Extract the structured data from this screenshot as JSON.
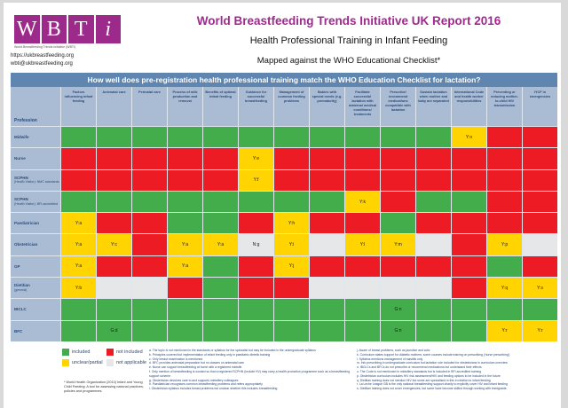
{
  "header": {
    "logo_letters": [
      "W",
      "B",
      "T",
      "i"
    ],
    "logo_tagline": "World Breastfeeding Trends Initiative (WBTi)",
    "website": "https://ukbreastfeeding.org",
    "email": "wbti@ukbreastfeeding.org",
    "title": "World Breastfeeding Trends Initiative UK Report 2016",
    "subtitle": "Health Professional Training in Infant Feeding",
    "subsubtitle": "Mapped against the WHO Educational Checklist*"
  },
  "banner": "How well does pre-registration health professional training match the WHO Education Checklist for lactation?",
  "table": {
    "profession_header": "Profession",
    "columns": [
      "Factors influencing infant feeding",
      "Antenatal care",
      "Perinatal care",
      "Process of milk production and removal",
      "Benefits of optimal infant feeding",
      "Guidance for successful breastfeeding",
      "Management of common feeding problems",
      "Babies with special needs (e.g. prematurity)",
      "Facilitate successful lactation with maternal medical conditions/ treatments",
      "Prescribe/ recommend medications compatible with lactation",
      "Sustain lactation when mother and baby are separated",
      "International Code and health worker responsibilities",
      "Preventing or reducing mother-to-child HIV transmission",
      "IYCF in emergencies"
    ],
    "rows": [
      {
        "name": "Midwife",
        "sub": "",
        "cells": [
          "G",
          "G",
          "G",
          "G",
          "G",
          "G",
          "G",
          "G",
          "G",
          "G",
          "G",
          "Y:o",
          "R",
          "R"
        ]
      },
      {
        "name": "Nurse",
        "sub": "",
        "cells": [
          "R",
          "R",
          "R",
          "R",
          "R",
          "Y:e",
          "R",
          "R",
          "R",
          "R",
          "R",
          "R",
          "R",
          "R"
        ]
      },
      {
        "name": "SCPHN",
        "sub": "(Health Visitor): NMC standards",
        "cells": [
          "R",
          "R",
          "R",
          "R",
          "R",
          "Y:f",
          "R",
          "R",
          "R",
          "R",
          "R",
          "R",
          "R",
          "R"
        ]
      },
      {
        "name": "SCPHN",
        "sub": "(Health Visitor): BFI-accredited",
        "cells": [
          "G",
          "G",
          "G",
          "G",
          "G",
          "G",
          "G",
          "G",
          "Y:k",
          "R",
          "G",
          "G",
          "R",
          "R"
        ]
      },
      {
        "name": "Paediatrician",
        "sub": "",
        "cells": [
          "Y:a",
          "R",
          "R",
          "G",
          "G",
          "R",
          "Y:h",
          "R",
          "R",
          "G",
          "R",
          "R",
          "R",
          "R"
        ]
      },
      {
        "name": "Obstetrician",
        "sub": "",
        "cells": [
          "Y:a",
          "Y:c",
          "R",
          "Y:a",
          "Y:a",
          "N:g",
          "Y:i",
          "N",
          "Y:l",
          "Y:m",
          "N",
          "R",
          "Y:p",
          "N"
        ]
      },
      {
        "name": "GP",
        "sub": "",
        "cells": [
          "Y:a",
          "R",
          "R",
          "Y:a",
          "G",
          "R",
          "Y:j",
          "R",
          "R",
          "R",
          "R",
          "R",
          "G",
          "R"
        ]
      },
      {
        "name": "Dietitian",
        "sub": "(general)",
        "cells": [
          "Y:b",
          "N",
          "N",
          "R",
          "G",
          "R",
          "R",
          "N",
          "N",
          "N",
          "N",
          "R",
          "Y:q",
          "Y:s"
        ]
      },
      {
        "name": "IBCLC",
        "sub": "",
        "cells": [
          "G",
          "G",
          "G",
          "G",
          "G",
          "G",
          "G",
          "G",
          "G",
          "G:n",
          "G",
          "G",
          "G",
          "G"
        ]
      },
      {
        "name": "BFC",
        "sub": "",
        "cells": [
          "G",
          "G:d",
          "G",
          "G",
          "G",
          "G",
          "G",
          "G",
          "G",
          "G:n",
          "G",
          "G",
          "Y:r",
          "Y:r"
        ]
      }
    ]
  },
  "colors": {
    "G": "#43ac4b",
    "R": "#ed1c24",
    "Y": "#ffd400",
    "N": "#e6e7e8"
  },
  "legend": {
    "included": "included",
    "not_included": "not included",
    "unclear": "unclear/partial",
    "na": "not applicable"
  },
  "who_note": "* World Health Organization (2010) Infant and Young Child Feeding: A tool for assessing national practices, policies and programmes.",
  "notes_left": [
    "a. The topic is not mentioned in the standards or syllabus for the specialist but may be included in the undergraduate syllabus",
    "b. Principles covered but implementation of infant feeding only in paediatric dietetic training",
    "c. Only breast examination is mentioned",
    "d. BFC provides antenatal preparation but no classes on antenatal care",
    "e. Nurse can support breastfeeding at home with a registered midwife",
    "f. Only mention of breastfeeding is worded so that a registered SCPHN (include HV) may carry a health promotion programme such as a breastfeeding support scheme",
    "g. Obstetrician devolves care to and supports midwifery colleagues",
    "h. Paediatrician recognises common breastfeeding problems and refers appropriately",
    "i. Obstetrician syllabus includes breast problems but unclear whether this includes breastfeeding"
  ],
  "notes_right": [
    "j. Aware of breast problems, such as jaundice and colic",
    "k. Curriculum states support for diabetic mothers; some courses include training on prescribing ('nurse prescribing')",
    "l. Syllabus mentions management of mastitis only",
    "m. Info prescribing in undergraduate curriculum but lactation role included for obstetricians in curriculum overview",
    "n. IBCLCs and BFCs do not prescribe or recommend medications but understand their effects",
    "o. The Code is not mentioned in midwifery standards but is included in BFI accredited training",
    "p. Obstetrician curriculum includes HIV risk assessment/HIV and feeding options to be included in the future",
    "q. Dietitian training does not mention HIV but some are specialised in this in relation to infant feeding",
    "r. La Leche League GB is the only national breastfeeding support charity to explicitly cover HIV and infant feeding",
    "s. Dietitian training does not cover emergencies, but some have become skilled through working with immigrants"
  ]
}
